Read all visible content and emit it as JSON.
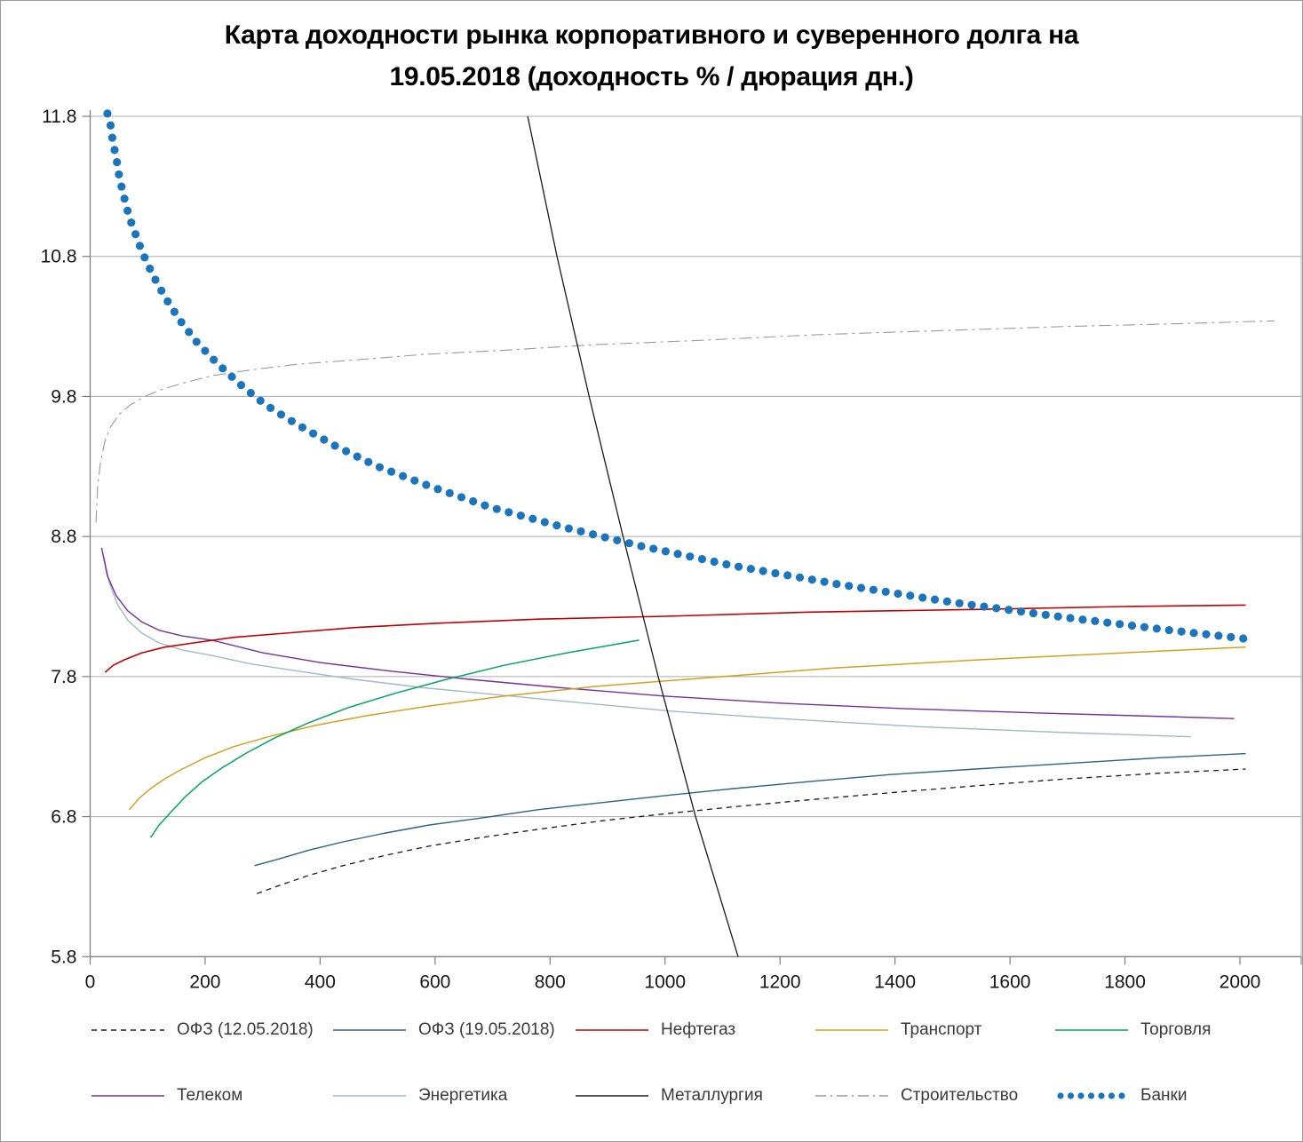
{
  "title": "Карта доходности рынка корпоративного и суверенного долга на 19.05.2018 (доходность % / дюрация дн.)",
  "chart_data": {
    "type": "line",
    "title": "Карта доходности рынка корпоративного и суверенного долга на 19.05.2018 (доходность % / дюрация дн.)",
    "xlabel": "",
    "ylabel": "",
    "grid": "horizontal",
    "legend_position": "bottom",
    "x_axis": {
      "min": 0,
      "max": 2100,
      "ticks": [
        0,
        200,
        400,
        600,
        800,
        1000,
        1200,
        1400,
        1600,
        1800,
        2000
      ]
    },
    "y_axis": {
      "min": 5.8,
      "max": 11.8,
      "ticks": [
        "5.8",
        "6.8",
        "7.8",
        "8.8",
        "9.8",
        "10.8",
        "11.8"
      ]
    },
    "series": [
      {
        "name": "Строительство",
        "color": "#969BA0",
        "style": "dashdot",
        "width": 1.1,
        "points": [
          [
            10,
            8.9
          ],
          [
            13,
            9.15
          ],
          [
            18,
            9.33
          ],
          [
            25,
            9.47
          ],
          [
            35,
            9.58
          ],
          [
            50,
            9.67
          ],
          [
            70,
            9.74
          ],
          [
            95,
            9.8
          ],
          [
            125,
            9.85
          ],
          [
            165,
            9.9
          ],
          [
            215,
            9.95
          ],
          [
            280,
            9.99
          ],
          [
            360,
            10.03
          ],
          [
            460,
            10.06
          ],
          [
            580,
            10.1
          ],
          [
            720,
            10.13
          ],
          [
            880,
            10.17
          ],
          [
            1060,
            10.2
          ],
          [
            1260,
            10.24
          ],
          [
            1480,
            10.27
          ],
          [
            1700,
            10.3
          ],
          [
            1900,
            10.32
          ],
          [
            2060,
            10.34
          ]
        ]
      },
      {
        "name": "Энергетика",
        "color": "#A3B8C6",
        "style": "solid",
        "width": 1.4,
        "points": [
          [
            24,
            8.65
          ],
          [
            34,
            8.46
          ],
          [
            48,
            8.31
          ],
          [
            66,
            8.2
          ],
          [
            90,
            8.11
          ],
          [
            120,
            8.04
          ],
          [
            160,
            7.99
          ],
          [
            212,
            7.95
          ],
          [
            280,
            7.89
          ],
          [
            360,
            7.84
          ],
          [
            460,
            7.78
          ],
          [
            580,
            7.72
          ],
          [
            710,
            7.67
          ],
          [
            860,
            7.61
          ],
          [
            1020,
            7.55
          ],
          [
            1200,
            7.5
          ],
          [
            1450,
            7.44
          ],
          [
            1700,
            7.4
          ],
          [
            1915,
            7.37
          ]
        ]
      },
      {
        "name": "Телеком",
        "color": "#7030A0",
        "style": "solid",
        "width": 1.4,
        "points": [
          [
            20,
            8.72
          ],
          [
            30,
            8.52
          ],
          [
            45,
            8.38
          ],
          [
            65,
            8.27
          ],
          [
            90,
            8.19
          ],
          [
            120,
            8.13
          ],
          [
            160,
            8.09
          ],
          [
            212,
            8.06
          ],
          [
            300,
            7.97
          ],
          [
            400,
            7.9
          ],
          [
            520,
            7.84
          ],
          [
            660,
            7.78
          ],
          [
            820,
            7.72
          ],
          [
            1000,
            7.66
          ],
          [
            1200,
            7.61
          ],
          [
            1420,
            7.57
          ],
          [
            1650,
            7.54
          ],
          [
            1820,
            7.52
          ],
          [
            1990,
            7.5
          ]
        ]
      },
      {
        "name": "Транспорт",
        "color": "#D5A021",
        "style": "solid",
        "width": 1.5,
        "points": [
          [
            68,
            6.85
          ],
          [
            85,
            6.93
          ],
          [
            105,
            7.0
          ],
          [
            130,
            7.07
          ],
          [
            160,
            7.14
          ],
          [
            200,
            7.22
          ],
          [
            250,
            7.3
          ],
          [
            310,
            7.37
          ],
          [
            390,
            7.45
          ],
          [
            480,
            7.52
          ],
          [
            590,
            7.59
          ],
          [
            720,
            7.66
          ],
          [
            880,
            7.73
          ],
          [
            1070,
            7.79
          ],
          [
            1290,
            7.86
          ],
          [
            1550,
            7.92
          ],
          [
            1800,
            7.97
          ],
          [
            2010,
            8.01
          ]
        ]
      },
      {
        "name": "Торговля",
        "color": "#00A55F",
        "style": "solid",
        "width": 1.5,
        "points": [
          [
            105,
            6.65
          ],
          [
            120,
            6.74
          ],
          [
            140,
            6.83
          ],
          [
            165,
            6.94
          ],
          [
            195,
            7.05
          ],
          [
            230,
            7.15
          ],
          [
            270,
            7.25
          ],
          [
            320,
            7.36
          ],
          [
            380,
            7.47
          ],
          [
            450,
            7.58
          ],
          [
            530,
            7.68
          ],
          [
            620,
            7.78
          ],
          [
            720,
            7.88
          ],
          [
            830,
            7.97
          ],
          [
            955,
            8.06
          ]
        ]
      },
      {
        "name": "Нефтегаз",
        "color": "#C00000",
        "style": "solid",
        "width": 1.6,
        "points": [
          [
            26,
            7.83
          ],
          [
            40,
            7.88
          ],
          [
            60,
            7.92
          ],
          [
            90,
            7.97
          ],
          [
            130,
            8.01
          ],
          [
            180,
            8.04
          ],
          [
            250,
            8.08
          ],
          [
            340,
            8.11
          ],
          [
            460,
            8.15
          ],
          [
            600,
            8.18
          ],
          [
            780,
            8.21
          ],
          [
            1000,
            8.23
          ],
          [
            1250,
            8.26
          ],
          [
            1550,
            8.28
          ],
          [
            1800,
            8.3
          ],
          [
            2010,
            8.31
          ]
        ]
      },
      {
        "name": "ОФЗ (19.05.2018)",
        "color": "#2A6384",
        "style": "solid",
        "width": 1.4,
        "points": [
          [
            286,
            6.45
          ],
          [
            330,
            6.5
          ],
          [
            380,
            6.56
          ],
          [
            440,
            6.62
          ],
          [
            510,
            6.68
          ],
          [
            590,
            6.74
          ],
          [
            680,
            6.79
          ],
          [
            780,
            6.85
          ],
          [
            890,
            6.9
          ],
          [
            1000,
            6.95
          ],
          [
            1120,
            7.0
          ],
          [
            1250,
            7.05
          ],
          [
            1390,
            7.1
          ],
          [
            1540,
            7.14
          ],
          [
            1700,
            7.18
          ],
          [
            1860,
            7.22
          ],
          [
            2010,
            7.25
          ]
        ]
      },
      {
        "name": "ОФЗ (12.05.2018)",
        "color": "#1A1A1A",
        "style": "dashed",
        "width": 1.3,
        "points": [
          [
            290,
            6.25
          ],
          [
            330,
            6.31
          ],
          [
            380,
            6.38
          ],
          [
            440,
            6.45
          ],
          [
            510,
            6.52
          ],
          [
            590,
            6.59
          ],
          [
            680,
            6.65
          ],
          [
            780,
            6.71
          ],
          [
            890,
            6.77
          ],
          [
            1000,
            6.82
          ],
          [
            1120,
            6.87
          ],
          [
            1250,
            6.92
          ],
          [
            1390,
            6.97
          ],
          [
            1540,
            7.02
          ],
          [
            1700,
            7.07
          ],
          [
            1860,
            7.11
          ],
          [
            2010,
            7.14
          ]
        ]
      },
      {
        "name": "Металлургия",
        "color": "#1A1A1A",
        "style": "solid",
        "width": 1.3,
        "points": [
          [
            761,
            11.8
          ],
          [
            812,
            10.8
          ],
          [
            868,
            9.8
          ],
          [
            927,
            8.8
          ],
          [
            988,
            7.8
          ],
          [
            1053,
            6.8
          ],
          [
            1127,
            5.8
          ]
        ]
      },
      {
        "name": "Банки",
        "color": "#1B75BC",
        "style": "dots",
        "width": 9,
        "points": [
          [
            30,
            11.82
          ],
          [
            34,
            11.78
          ],
          [
            37,
            11.69
          ],
          [
            40,
            11.6
          ],
          [
            45,
            11.52
          ],
          [
            48,
            11.43
          ],
          [
            52,
            11.34
          ],
          [
            57,
            11.26
          ],
          [
            62,
            11.17
          ],
          [
            69,
            11.07
          ],
          [
            77,
            10.98
          ],
          [
            86,
            10.88
          ],
          [
            96,
            10.78
          ],
          [
            110,
            10.66
          ],
          [
            130,
            10.51
          ],
          [
            155,
            10.35
          ],
          [
            185,
            10.19
          ],
          [
            220,
            10.04
          ],
          [
            260,
            9.89
          ],
          [
            305,
            9.74
          ],
          [
            360,
            9.6
          ],
          [
            425,
            9.45
          ],
          [
            500,
            9.3
          ],
          [
            590,
            9.16
          ],
          [
            695,
            9.01
          ],
          [
            820,
            8.87
          ],
          [
            960,
            8.73
          ],
          [
            1120,
            8.59
          ],
          [
            1300,
            8.46
          ],
          [
            1500,
            8.33
          ],
          [
            1700,
            8.22
          ],
          [
            1880,
            8.13
          ],
          [
            2010,
            8.07
          ]
        ]
      }
    ]
  },
  "legend": {
    "rows": [
      [
        "ОФЗ (12.05.2018)",
        "ОФЗ (19.05.2018)",
        "Нефтегаз",
        "Транспорт",
        "Торговля"
      ],
      [
        "Телеком",
        "Энергетика",
        "Металлургия",
        "Строительство",
        "Банки"
      ]
    ]
  },
  "style_colors": {
    "gridline": "#ACACAC",
    "axis": "#7F7F7F",
    "tick_text": "#161616",
    "legend_text": "#3A3A3A"
  }
}
